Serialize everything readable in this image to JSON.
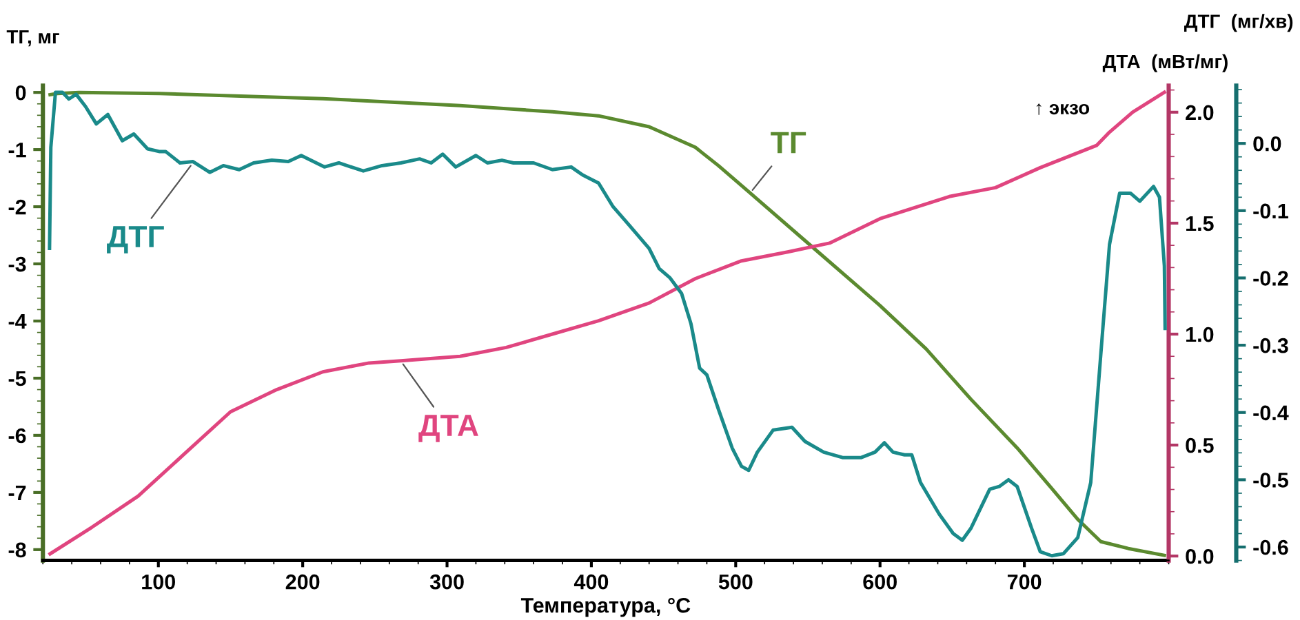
{
  "chart_data": {
    "type": "line",
    "xlabel": "Температура, °C",
    "ylabel": "ТГ, мг",
    "y2label": "ДТА  (мВт/мг)",
    "y3label": "ДТГ  (мг/хв)",
    "xlim": [
      20,
      800
    ],
    "xticks": [
      100,
      200,
      300,
      400,
      500,
      600,
      700
    ],
    "ylim": [
      -8.19,
      0.12
    ],
    "yticks": [
      0,
      -1,
      -2,
      -3,
      -4,
      -5,
      -6,
      -7,
      -8
    ],
    "y2lim": [
      -0.02,
      2.12
    ],
    "y2ticks": [
      {
        "value": 0,
        "label": "0.0"
      },
      {
        "value": 0.5,
        "label": "0.5"
      },
      {
        "value": 1,
        "label": "1.0"
      },
      {
        "value": 1.5,
        "label": "1.5"
      },
      {
        "value": 2,
        "label": "2.0"
      }
    ],
    "y3lim": [
      -0.62,
      0.086
    ],
    "y3ticks": [
      {
        "value": 0,
        "label": "0.0"
      },
      {
        "value": -0.1,
        "label": "-0.1"
      },
      {
        "value": -0.2,
        "label": "-0.2"
      },
      {
        "value": -0.3,
        "label": "-0.3"
      },
      {
        "value": -0.4,
        "label": "-0.4"
      },
      {
        "value": -0.5,
        "label": "-0.5"
      },
      {
        "value": -0.6,
        "label": "-0.6"
      }
    ],
    "grid": false,
    "legend": false,
    "marker": "none",
    "line_style": "solid",
    "series": [
      {
        "color": "#5b8a2f",
        "axis": "y",
        "x": [
          25,
          30,
          45,
          101,
          214,
          309,
          373,
          405,
          440,
          472,
          488,
          510,
          552,
          600,
          632,
          663,
          695,
          718,
          737,
          753,
          772,
          797
        ],
        "values": [
          -0.04,
          -0.02,
          0,
          -0.02,
          -0.11,
          -0.23,
          -0.34,
          -0.41,
          -0.6,
          -0.96,
          -1.28,
          -1.76,
          -2.68,
          -3.73,
          -4.49,
          -5.37,
          -6.22,
          -6.9,
          -7.47,
          -7.86,
          -7.98,
          -8.1
        ]
      },
      {
        "color": "#e0457f",
        "axis": "y2",
        "x": [
          25,
          54,
          86,
          118,
          150,
          182,
          214,
          246,
          268,
          309,
          341,
          373,
          405,
          440,
          472,
          504,
          536,
          565,
          600,
          648,
          680,
          711,
          750,
          759,
          775,
          797
        ],
        "values": [
          0.01,
          0.13,
          0.27,
          0.46,
          0.65,
          0.75,
          0.83,
          0.87,
          0.88,
          0.9,
          0.94,
          1.0,
          1.06,
          1.14,
          1.25,
          1.33,
          1.37,
          1.41,
          1.52,
          1.62,
          1.66,
          1.75,
          1.85,
          1.91,
          2.0,
          2.09
        ]
      },
      {
        "color": "#1a8a8a",
        "axis": "y3",
        "x": [
          24.6,
          25.5,
          28.7,
          33.5,
          38,
          43,
          49.5,
          57,
          65,
          75,
          83,
          92.5,
          100.5,
          105,
          115,
          124,
          135.6,
          145,
          156,
          166,
          178.6,
          190,
          199,
          215,
          225,
          242,
          255,
          268,
          281,
          289,
          297,
          306,
          320,
          328,
          338,
          346,
          360,
          373,
          386,
          394,
          405,
          415,
          426,
          440,
          447,
          454.5,
          462.5,
          469,
          475,
          480,
          488,
          497.6,
          504,
          509,
          515,
          526,
          539,
          548,
          561,
          574,
          587,
          596.5,
          603,
          609,
          617,
          622,
          628,
          641,
          650.7,
          657,
          663,
          676,
          682.6,
          689,
          695,
          705,
          711,
          719,
          727,
          737,
          746,
          754,
          759,
          766,
          773.5,
          780,
          789.5,
          793.6,
          797,
          797.5
        ],
        "values": [
          -0.156,
          -0.006,
          0.076,
          0.076,
          0.066,
          0.073,
          0.055,
          0.029,
          0.043,
          0.004,
          0.014,
          -0.008,
          -0.012,
          -0.012,
          -0.029,
          -0.027,
          -0.043,
          -0.033,
          -0.039,
          -0.029,
          -0.025,
          -0.027,
          -0.018,
          -0.035,
          -0.029,
          -0.041,
          -0.033,
          -0.029,
          -0.023,
          -0.029,
          -0.016,
          -0.035,
          -0.018,
          -0.029,
          -0.025,
          -0.029,
          -0.029,
          -0.039,
          -0.035,
          -0.047,
          -0.059,
          -0.094,
          -0.121,
          -0.156,
          -0.186,
          -0.2,
          -0.223,
          -0.268,
          -0.334,
          -0.344,
          -0.395,
          -0.453,
          -0.48,
          -0.486,
          -0.459,
          -0.426,
          -0.422,
          -0.443,
          -0.459,
          -0.467,
          -0.467,
          -0.459,
          -0.445,
          -0.459,
          -0.463,
          -0.463,
          -0.504,
          -0.551,
          -0.58,
          -0.59,
          -0.572,
          -0.514,
          -0.51,
          -0.5,
          -0.51,
          -0.572,
          -0.607,
          -0.613,
          -0.61,
          -0.586,
          -0.504,
          -0.285,
          -0.15,
          -0.074,
          -0.074,
          -0.086,
          -0.064,
          -0.08,
          -0.182,
          -0.275
        ]
      }
    ],
    "annotations": [
      {
        "text": "ТГ",
        "x": 510,
        "y": -1.76
      },
      {
        "text": "ДТГ",
        "x": 124,
        "y": -1.23
      },
      {
        "text": "ДТА",
        "x": 268,
        "y": -4.7
      },
      "↑ экзо"
    ]
  }
}
